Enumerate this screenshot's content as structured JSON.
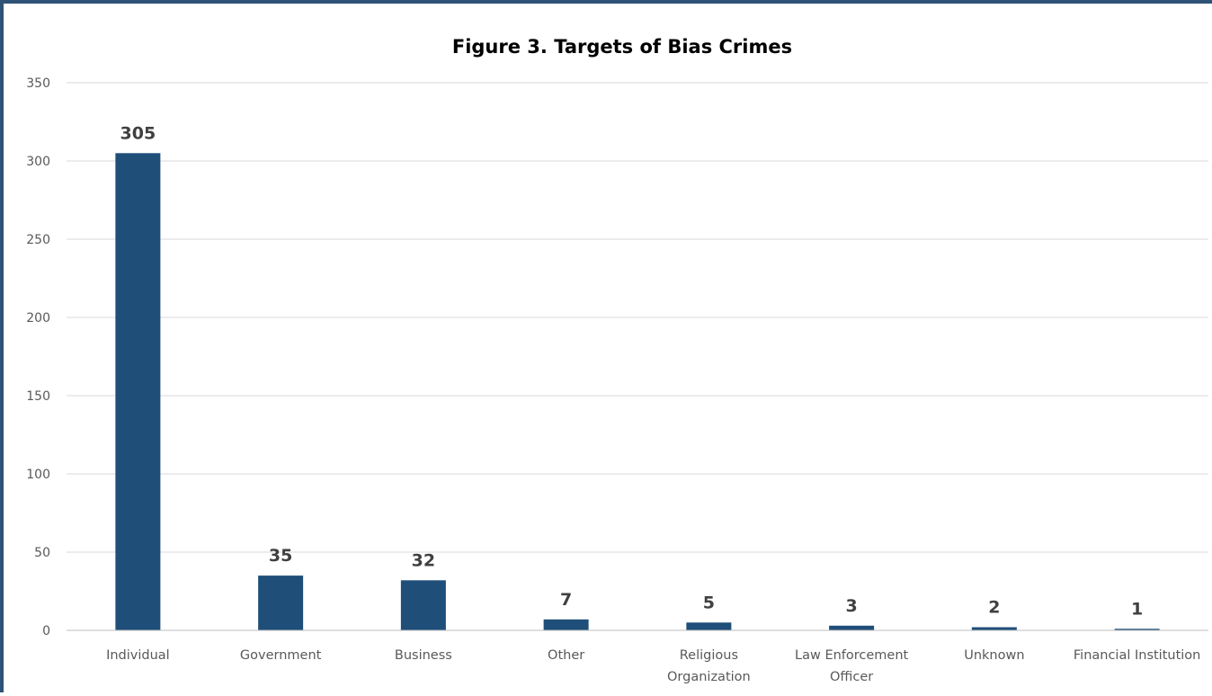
{
  "chart_data": {
    "type": "bar",
    "title": "Figure 3. Targets of Bias Crimes",
    "xlabel": "",
    "ylabel": "",
    "categories": [
      [
        "Individual"
      ],
      [
        "Government"
      ],
      [
        "Business"
      ],
      [
        "Other"
      ],
      [
        "Religious",
        "Organization"
      ],
      [
        "Law Enforcement",
        "Officer"
      ],
      [
        "Unknown"
      ],
      [
        "Financial Institution"
      ]
    ],
    "values": [
      305,
      35,
      32,
      7,
      5,
      3,
      2,
      1
    ],
    "ylim": [
      0,
      350
    ],
    "yticks": [
      0,
      50,
      100,
      150,
      200,
      250,
      300,
      350
    ],
    "grid": true,
    "legend": "none",
    "colors": {
      "bar": "#1f4e79",
      "grid": "#d9d9d9",
      "axis": "#bfbfbf",
      "frame": "#2f5377"
    }
  }
}
